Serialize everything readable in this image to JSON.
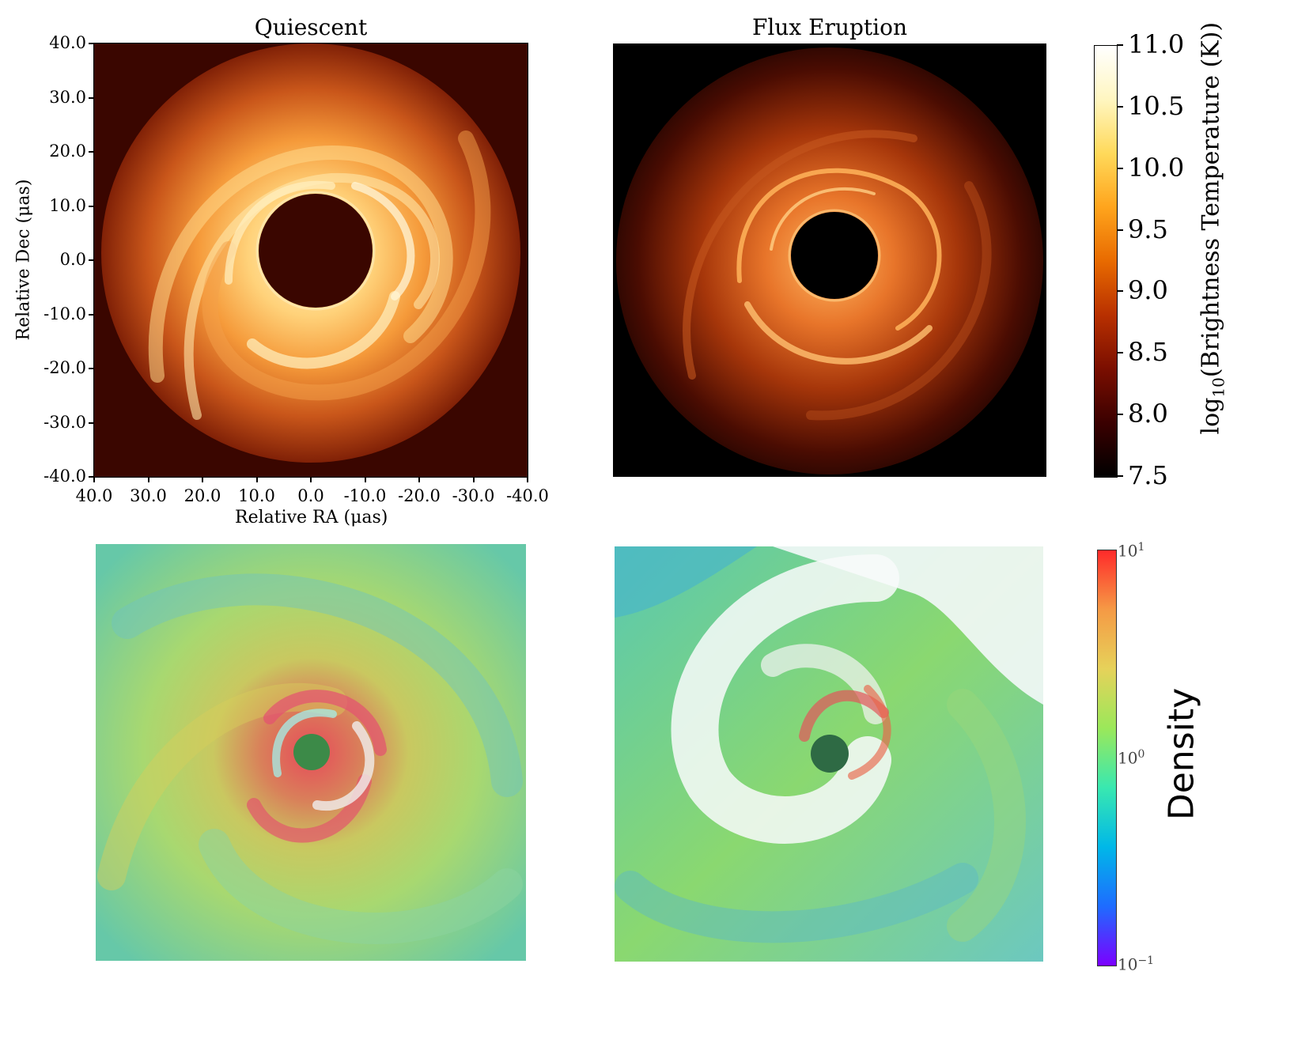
{
  "top_left": {
    "title": "Quiescent",
    "ylabel": "Relative Dec (μas)",
    "xlabel": "Relative RA (μas)",
    "yticks": [
      "40.0",
      "30.0",
      "20.0",
      "10.0",
      "0.0",
      "-10.0",
      "-20.0",
      "-30.0",
      "-40.0"
    ],
    "xticks": [
      "40.0",
      "30.0",
      "20.0",
      "10.0",
      "0.0",
      "-10.0",
      "-20.0",
      "-30.0",
      "-40.0"
    ]
  },
  "top_right": {
    "title": "Flux Eruption"
  },
  "temp_colorbar": {
    "label_prefix": "log",
    "label_sub": "10",
    "label_suffix": "(Brightness Temperature (K))",
    "ticks": [
      "11.0",
      "10.5",
      "10.0",
      "9.5",
      "9.0",
      "8.5",
      "8.0",
      "7.5"
    ],
    "colors": [
      "#000000",
      "#3a0000",
      "#7a0e00",
      "#b83000",
      "#e86a00",
      "#ffa41c",
      "#ffd95a",
      "#fff6c0",
      "#ffffff"
    ]
  },
  "density_colorbar": {
    "label": "Density",
    "tick_base": "10",
    "tick_exps": [
      "1",
      "0",
      "−1"
    ],
    "colors": [
      "#7b00ff",
      "#1e6cff",
      "#00b8e8",
      "#39e8b0",
      "#9be85a",
      "#e6d25a",
      "#f59a45",
      "#ff2a2a"
    ]
  }
}
